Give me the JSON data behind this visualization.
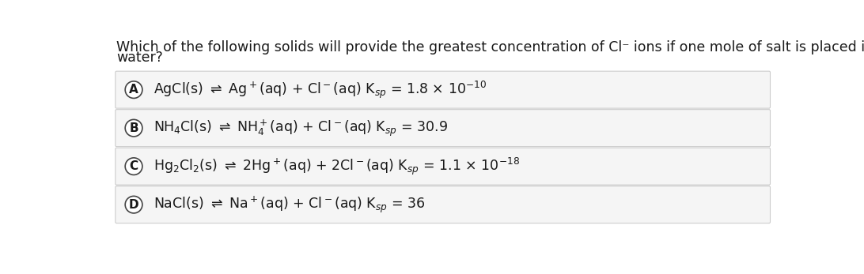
{
  "background_color": "#ffffff",
  "question_line1": "Which of the following solids will provide the greatest concentration of Cl⁻ ions if one mole of salt is placed in one liter of deionized",
  "question_line2": "water?",
  "options": [
    {
      "label": "A",
      "mathtext": "AgCl(s) $\\rightleftharpoons$ Ag$^+$(aq) + Cl$^-$(aq) K$_{sp}$ = 1.8 × 10$^{-10}$"
    },
    {
      "label": "B",
      "mathtext": "NH$_4$Cl(s) $\\rightleftharpoons$ NH$_4^+$(aq) + Cl$^-$(aq) K$_{sp}$ = 30.9"
    },
    {
      "label": "C",
      "mathtext": "Hg$_2$Cl$_2$(s) $\\rightleftharpoons$ 2Hg$^+$(aq) + 2Cl$^-$(aq) K$_{sp}$ = 1.1 × 10$^{-18}$"
    },
    {
      "label": "D",
      "mathtext": "NaCl(s) $\\rightleftharpoons$ Na$^+$(aq) + Cl$^-$(aq) K$_{sp}$ = 36"
    }
  ],
  "option_box_facecolor": "#f5f5f5",
  "option_box_edgecolor": "#cccccc",
  "circle_facecolor": "#ffffff",
  "circle_edgecolor": "#444444",
  "text_color": "#1a1a1a",
  "font_size": 12.5,
  "question_font_size": 12.5,
  "label_font_size": 11
}
